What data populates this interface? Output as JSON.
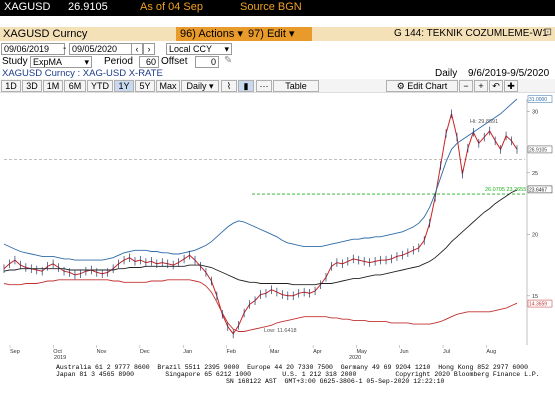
{
  "top": {
    "ticker": "XAGUSD",
    "price": "26.9105",
    "asof": "As of 04 Sep",
    "source": "Source BGN"
  },
  "menu": {
    "actions": "96) Actions",
    "edit": "97) Edit",
    "title": "G 144: TEKNIK COZUMLEME-W1"
  },
  "security": {
    "name": "XAGUSD Curncy",
    "subtitle": "XAGUSD Curncy : XAG-USD X-RATE"
  },
  "range": {
    "start": "09/06/2019",
    "end": "09/05/2020",
    "currency": "Local CCY"
  },
  "study": {
    "label": "Study",
    "value": "ExpMA",
    "period_label": "Period",
    "period": "60",
    "offset_label": "Offset",
    "offset": "0"
  },
  "freq": {
    "label": "Daily",
    "span": "9/6/2019-9/5/2020"
  },
  "tabs": [
    "1D",
    "3D",
    "1M",
    "6M",
    "YTD",
    "1Y",
    "5Y",
    "Max"
  ],
  "selected_tab": "1Y",
  "toolbar": {
    "daily": "Daily",
    "table": "Table",
    "edit_chart": "Edit Chart"
  },
  "chart_data": {
    "type": "line",
    "x_tick_labels": [
      "Sep",
      "Oct",
      "Nov",
      "Dec",
      "Jan",
      "Feb",
      "Mar",
      "Apr",
      "May",
      "Jun",
      "Jul",
      "Aug"
    ],
    "year_labels": [
      "2019",
      "2020"
    ],
    "y_tick_labels": [
      "30",
      "25",
      "20",
      "15"
    ],
    "ylim": [
      11,
      31
    ],
    "annotations": {
      "high": "Hi: 29.8591",
      "low": "Low: 11.6418"
    },
    "right_labels": {
      "upper": "31.0000",
      "price": "26.9105",
      "mid": "23.6467",
      "lower": "14.3659"
    },
    "level_label": "26.0705 23.2655",
    "levels": [
      26.07,
      23.27
    ],
    "series": [
      {
        "role": "price",
        "values": [
          17.2,
          17.6,
          17.9,
          17.5,
          17.3,
          17.2,
          17.1,
          17.0,
          17.4,
          17.6,
          17.3,
          17.0,
          16.9,
          16.7,
          16.8,
          17.0,
          17.1,
          16.9,
          16.8,
          16.9,
          17.2,
          17.6,
          17.9,
          18.1,
          17.8,
          17.9,
          17.7,
          17.8,
          17.6,
          17.7,
          17.6,
          17.5,
          17.7,
          18.0,
          18.3,
          17.9,
          17.4,
          16.9,
          16.2,
          15.0,
          13.5,
          12.5,
          11.9,
          12.6,
          13.6,
          14.3,
          14.6,
          15.1,
          15.2,
          15.5,
          15.3,
          15.1,
          15.0,
          15.0,
          15.2,
          15.3,
          15.2,
          15.4,
          15.9,
          16.5,
          17.4,
          17.7,
          17.6,
          17.8,
          18.0,
          17.9,
          17.8,
          17.7,
          17.8,
          17.9,
          17.9,
          18.0,
          18.2,
          18.3,
          18.5,
          18.7,
          18.9,
          19.5,
          20.9,
          23.0,
          25.6,
          28.2,
          29.8,
          27.9,
          24.9,
          27.0,
          28.3,
          27.4,
          27.9,
          28.4,
          27.6,
          26.9,
          28.0,
          27.6,
          26.9
        ]
      },
      {
        "role": "upper-band",
        "values": [
          19.2,
          19.0,
          18.8,
          18.6,
          18.5,
          18.4,
          18.3,
          18.2,
          18.2,
          18.2,
          18.1,
          18.0,
          18.0,
          17.9,
          17.9,
          17.9,
          17.9,
          17.9,
          17.9,
          18.0,
          18.1,
          18.3,
          18.5,
          18.6,
          18.7,
          18.7,
          18.7,
          18.6,
          18.6,
          18.5,
          18.5,
          18.4,
          18.4,
          18.5,
          18.6,
          18.7,
          18.9,
          19.1,
          19.4,
          19.8,
          20.2,
          20.6,
          20.9,
          21.1,
          21.0,
          20.8,
          20.6,
          20.4,
          20.2,
          20.0,
          19.8,
          19.5,
          19.3,
          19.2,
          19.1,
          19.0,
          19.0,
          19.0,
          19.0,
          19.1,
          19.2,
          19.3,
          19.4,
          19.5,
          19.6,
          19.6,
          19.7,
          19.7,
          19.8,
          19.8,
          19.9,
          20.0,
          20.1,
          20.2,
          20.4,
          20.6,
          20.9,
          21.4,
          22.2,
          23.3,
          24.6,
          25.9,
          26.9,
          27.4,
          27.7,
          28.0,
          28.3,
          28.6,
          28.9,
          29.2,
          29.5,
          29.8,
          30.2,
          30.6,
          31.0
        ]
      },
      {
        "role": "ema",
        "values": [
          17.0,
          17.1,
          17.1,
          17.2,
          17.2,
          17.2,
          17.2,
          17.2,
          17.2,
          17.2,
          17.2,
          17.2,
          17.1,
          17.1,
          17.1,
          17.1,
          17.1,
          17.1,
          17.1,
          17.1,
          17.1,
          17.2,
          17.2,
          17.3,
          17.3,
          17.3,
          17.4,
          17.4,
          17.4,
          17.4,
          17.4,
          17.4,
          17.4,
          17.4,
          17.5,
          17.5,
          17.5,
          17.4,
          17.3,
          17.1,
          16.9,
          16.7,
          16.5,
          16.3,
          16.2,
          16.1,
          16.1,
          16.0,
          16.0,
          16.0,
          16.0,
          16.0,
          16.0,
          15.9,
          15.9,
          15.9,
          15.9,
          15.9,
          16.0,
          16.0,
          16.0,
          16.1,
          16.2,
          16.3,
          16.4,
          16.4,
          16.5,
          16.6,
          16.7,
          16.7,
          16.8,
          16.9,
          17.0,
          17.1,
          17.2,
          17.3,
          17.4,
          17.6,
          17.8,
          18.1,
          18.5,
          18.9,
          19.4,
          19.8,
          20.2,
          20.6,
          21.0,
          21.4,
          21.8,
          22.1,
          22.5,
          22.8,
          23.1,
          23.4,
          23.6
        ]
      },
      {
        "role": "lower-band",
        "values": [
          16.0,
          15.9,
          15.9,
          15.9,
          16.0,
          16.0,
          16.0,
          16.1,
          16.2,
          16.2,
          16.3,
          16.3,
          16.3,
          16.3,
          16.3,
          16.3,
          16.3,
          16.3,
          16.3,
          16.3,
          16.2,
          16.2,
          16.1,
          16.1,
          16.1,
          16.1,
          16.1,
          16.2,
          16.2,
          16.2,
          16.3,
          16.3,
          16.3,
          16.3,
          16.3,
          16.2,
          16.1,
          15.8,
          15.3,
          14.5,
          13.6,
          12.8,
          12.3,
          12.1,
          12.1,
          12.2,
          12.3,
          12.4,
          12.5,
          12.6,
          12.8,
          12.9,
          13.0,
          13.1,
          13.2,
          13.3,
          13.3,
          13.3,
          13.3,
          13.3,
          13.2,
          13.2,
          13.1,
          13.1,
          13.0,
          13.0,
          13.0,
          12.9,
          12.9,
          12.9,
          12.9,
          12.8,
          12.8,
          12.8,
          12.8,
          12.7,
          12.7,
          12.7,
          12.7,
          12.8,
          12.9,
          13.1,
          13.3,
          13.5,
          13.6,
          13.7,
          13.7,
          13.7,
          13.7,
          13.7,
          13.8,
          13.9,
          14.0,
          14.2,
          14.4
        ]
      }
    ]
  },
  "colors": {
    "price": "#cc2222",
    "ema": "#222222",
    "upper": "#2e6aa8",
    "lower": "#c23030",
    "level1": "#9a9a9a",
    "level2": "#1fb01f",
    "amber": "#e89a2a"
  },
  "footer": {
    "line1": "Australia 61 2 9777 8600  Brazil 5511 2395 9000  Europe 44 20 7330 7500  Germany 49 69 9204 1210  Hong Kong 852 2977 6000",
    "line2": "Japan 81 3 4565 8900        Singapore 65 6212 1000        U.S. 1 212 318 2000          Copyright 2020 Bloomberg Finance L.P.",
    "line3": "SN 168122 AST  GMT+3:00 G625-3806-1 05-Sep-2020 12:22:10"
  }
}
